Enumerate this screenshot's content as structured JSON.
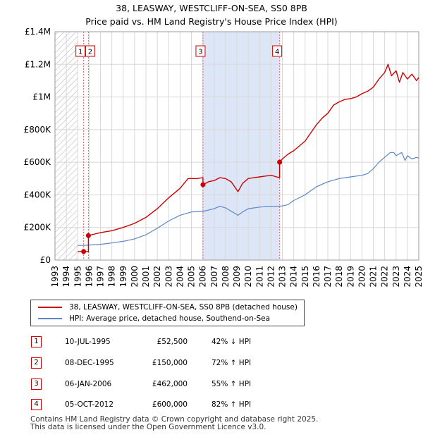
{
  "title_line1": "38, LEASWAY, WESTCLIFF-ON-SEA, SS0 8PB",
  "title_line2": "Price paid vs. HM Land Registry's House Price Index (HPI)",
  "colors": {
    "property": "#cc0000",
    "hpi": "#5a87c5",
    "shade": "#dde6f7",
    "hatch": "#b0b0b0",
    "grid": "#d8d8d8",
    "vline": "#dd6666"
  },
  "legend": {
    "property_label": "38, LEASWAY, WESTCLIFF-ON-SEA, SS0 8PB (detached house)",
    "hpi_label": "HPI: Average price, detached house, Southend-on-Sea"
  },
  "transactions": [
    {
      "num": "1",
      "date": "10-JUL-1995",
      "price": "£52,500",
      "hpi": "42% ↓ HPI"
    },
    {
      "num": "2",
      "date": "08-DEC-1995",
      "price": "£150,000",
      "hpi": "72% ↑ HPI"
    },
    {
      "num": "3",
      "date": "06-JAN-2006",
      "price": "£462,000",
      "hpi": "55% ↑ HPI"
    },
    {
      "num": "4",
      "date": "05-OCT-2012",
      "price": "£600,000",
      "hpi": "82% ↑ HPI"
    }
  ],
  "footer_line1": "Contains HM Land Registry data © Crown copyright and database right 2025.",
  "footer_line2": "This data is licensed under the Open Government Licence v3.0.",
  "chart_data": {
    "type": "line",
    "xlim": [
      1993,
      2025
    ],
    "ylim": [
      0,
      1400000
    ],
    "yticks": [
      0,
      200000,
      400000,
      600000,
      800000,
      1000000,
      1200000,
      1400000
    ],
    "ytick_labels": [
      "£0",
      "£200K",
      "£400K",
      "£600K",
      "£800K",
      "£1M",
      "£1.2M",
      "£1.4M"
    ],
    "xticks": [
      "1993",
      "1994",
      "1995",
      "1996",
      "1997",
      "1998",
      "1999",
      "2000",
      "2001",
      "2002",
      "2003",
      "2004",
      "2005",
      "2006",
      "2007",
      "2008",
      "2009",
      "2010",
      "2011",
      "2012",
      "2013",
      "2014",
      "2015",
      "2016",
      "2017",
      "2018",
      "2019",
      "2020",
      "2021",
      "2022",
      "2023",
      "2024",
      "2025"
    ],
    "hatch_until": 1995.0,
    "shaded_range": [
      2006.02,
      2012.76
    ],
    "sales": [
      {
        "label": "1",
        "x": 1995.52,
        "y": 52500
      },
      {
        "label": "2",
        "x": 1995.94,
        "y": 150000
      },
      {
        "label": "3",
        "x": 2006.02,
        "y": 462000
      },
      {
        "label": "4",
        "x": 2012.76,
        "y": 600000
      }
    ],
    "series": [
      {
        "name": "38, LEASWAY, WESTCLIFF-ON-SEA, SS0 8PB (detached house)",
        "x": [
          1995.0,
          1995.52,
          1995.52,
          1995.94,
          1995.94,
          1996.5,
          1997,
          1998,
          1999,
          2000,
          2001,
          2002,
          2003,
          2004,
          2004.7,
          2005.5,
          2006.02,
          2006.02,
          2006.5,
          2007,
          2007.5,
          2008,
          2008.5,
          2009.1,
          2009.5,
          2010,
          2010.5,
          2011,
          2011.5,
          2012,
          2012.5,
          2012.76,
          2012.76,
          2013,
          2013.5,
          2014,
          2014.5,
          2015,
          2015.5,
          2016,
          2016.5,
          2017,
          2017.5,
          2018,
          2018.5,
          2019,
          2019.5,
          2020,
          2020.5,
          2021,
          2021.5,
          2022,
          2022.3,
          2022.6,
          2023,
          2023.3,
          2023.6,
          2024,
          2024.4,
          2024.8,
          2025
        ],
        "y": [
          52500,
          52500,
          52500,
          52500,
          150000,
          160000,
          168000,
          180000,
          200000,
          225000,
          262000,
          315000,
          382000,
          440000,
          500000,
          500000,
          505000,
          462000,
          480000,
          488000,
          505000,
          500000,
          480000,
          420000,
          470000,
          500000,
          505000,
          510000,
          515000,
          520000,
          510000,
          505000,
          600000,
          620000,
          650000,
          670000,
          700000,
          730000,
          780000,
          830000,
          870000,
          900000,
          950000,
          970000,
          985000,
          990000,
          1000000,
          1020000,
          1035000,
          1060000,
          1110000,
          1150000,
          1200000,
          1130000,
          1160000,
          1090000,
          1150000,
          1110000,
          1140000,
          1100000,
          1120000
        ]
      },
      {
        "name": "HPI: Average price, detached house, Southend-on-Sea",
        "x": [
          1995.0,
          1995.5,
          1996,
          1997,
          1998,
          1999,
          2000,
          2001,
          2002,
          2003,
          2004,
          2005,
          2006,
          2007,
          2007.5,
          2008,
          2008.5,
          2009.1,
          2009.5,
          2010,
          2011,
          2012,
          2012.5,
          2013,
          2013.5,
          2014,
          2015,
          2016,
          2017,
          2018,
          2019,
          2020,
          2020.5,
          2021,
          2021.5,
          2022,
          2022.5,
          2022.8,
          2023,
          2023.5,
          2023.8,
          2024,
          2024.4,
          2024.8,
          2025
        ],
        "y": [
          90000,
          90000,
          92000,
          97000,
          105000,
          115000,
          130000,
          155000,
          195000,
          240000,
          275000,
          295000,
          298000,
          315000,
          330000,
          320000,
          300000,
          275000,
          295000,
          315000,
          325000,
          330000,
          330000,
          332000,
          340000,
          365000,
          400000,
          450000,
          480000,
          500000,
          510000,
          520000,
          530000,
          560000,
          600000,
          630000,
          660000,
          660000,
          640000,
          660000,
          610000,
          640000,
          620000,
          630000,
          625000
        ]
      }
    ]
  }
}
